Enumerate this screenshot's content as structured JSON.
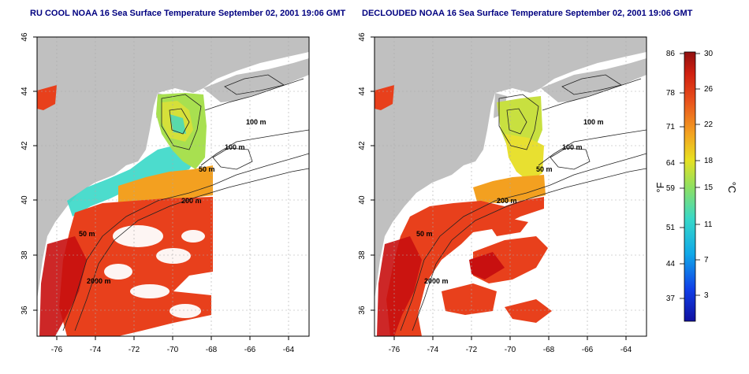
{
  "left_map": {
    "title": "RU COOL NOAA 16 Sea Surface Temperature September 02, 2001 19:06 GMT",
    "x_ticks": [
      "-76",
      "-74",
      "-72",
      "-70",
      "-68",
      "-66",
      "-64"
    ],
    "y_ticks": [
      "36",
      "38",
      "40",
      "42",
      "44",
      "46"
    ],
    "contour_labels": [
      "100 m",
      "100 m",
      "50 m",
      "200 m",
      "50 m",
      "2000 m"
    ]
  },
  "right_map": {
    "title": "DECLOUDED NOAA 16 Sea Surface Temperature September 02, 2001 19:06 GMT",
    "x_ticks": [
      "-76",
      "-74",
      "-72",
      "-70",
      "-68",
      "-66",
      "-64"
    ],
    "y_ticks": [
      "36",
      "38",
      "40",
      "42",
      "44",
      "46"
    ],
    "contour_labels": [
      "100 m",
      "100 m",
      "50 m",
      "200 m",
      "50 m",
      "2000 m"
    ]
  },
  "colorbar": {
    "f_label": "°F",
    "c_label": "°C",
    "f_ticks": [
      "86",
      "78",
      "71",
      "64",
      "59",
      "51",
      "44",
      "37"
    ],
    "c_ticks": [
      "30",
      "26",
      "22",
      "18",
      "15",
      "11",
      "7",
      "3"
    ]
  },
  "colors": {
    "land": "#c0c0c0",
    "warm": "#e8341c",
    "hot": "#c81010",
    "mid": "#f3a020",
    "cool": "#b8e040",
    "cold": "#38d8c8",
    "title": "#000080"
  }
}
